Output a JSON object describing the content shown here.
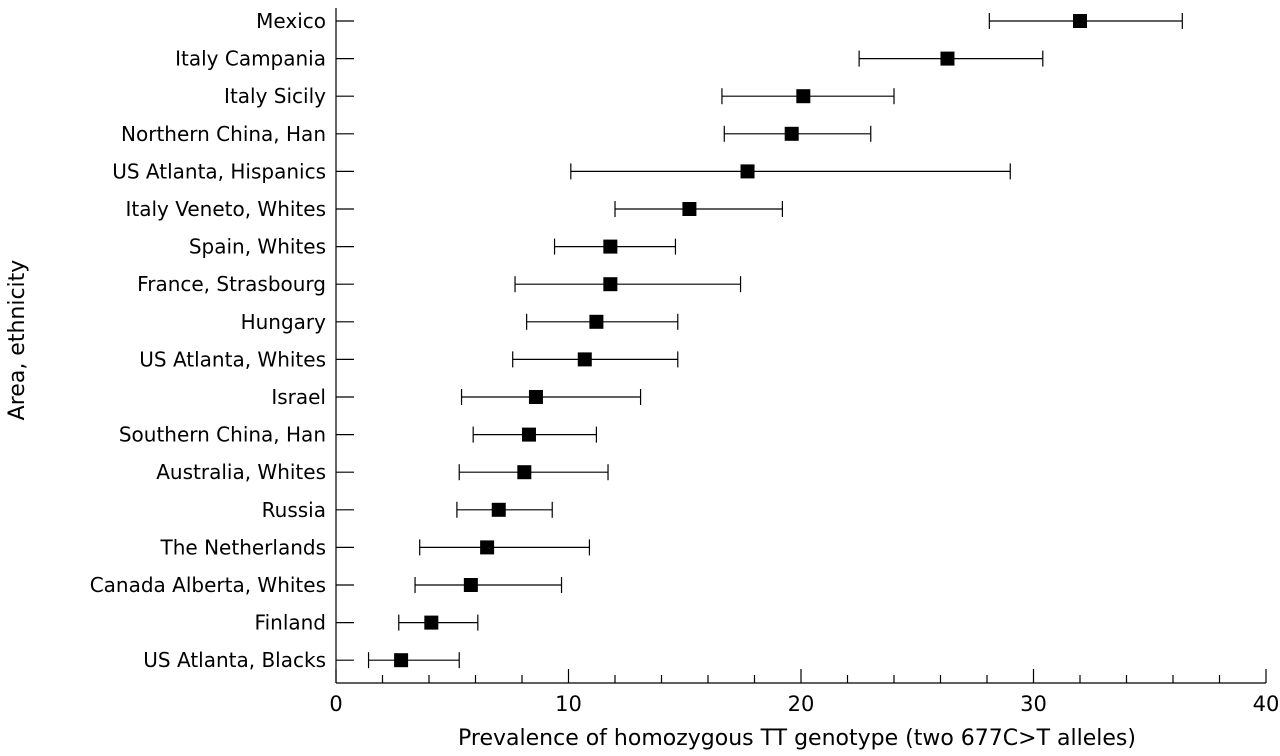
{
  "chart_data": {
    "type": "forest",
    "xlabel": "Prevalence of homozygous TT genotype (two 677C>T alleles)",
    "ylabel": "Area, ethnicity",
    "xlim": [
      0,
      40
    ],
    "xticks_labeled": [
      0,
      10,
      20,
      30,
      40
    ],
    "xticks_minor_step": 2,
    "grid": false,
    "marker": "square",
    "marker_color": "#000000",
    "rows": [
      {
        "label": "Mexico",
        "estimate": 32.0,
        "lower": 28.1,
        "upper": 36.4
      },
      {
        "label": "Italy Campania",
        "estimate": 26.3,
        "lower": 22.5,
        "upper": 30.4
      },
      {
        "label": "Italy Sicily",
        "estimate": 20.1,
        "lower": 16.6,
        "upper": 24.0
      },
      {
        "label": "Northern China, Han",
        "estimate": 19.6,
        "lower": 16.7,
        "upper": 23.0
      },
      {
        "label": "US Atlanta, Hispanics",
        "estimate": 17.7,
        "lower": 10.1,
        "upper": 29.0
      },
      {
        "label": "Italy Veneto, Whites",
        "estimate": 15.2,
        "lower": 12.0,
        "upper": 19.2
      },
      {
        "label": "Spain, Whites",
        "estimate": 11.8,
        "lower": 9.4,
        "upper": 14.6
      },
      {
        "label": "France, Strasbourg",
        "estimate": 11.8,
        "lower": 7.7,
        "upper": 17.4
      },
      {
        "label": "Hungary",
        "estimate": 11.2,
        "lower": 8.2,
        "upper": 14.7
      },
      {
        "label": "US Atlanta, Whites",
        "estimate": 10.7,
        "lower": 7.6,
        "upper": 14.7
      },
      {
        "label": "Israel",
        "estimate": 8.6,
        "lower": 5.4,
        "upper": 13.1
      },
      {
        "label": "Southern China, Han",
        "estimate": 8.3,
        "lower": 5.9,
        "upper": 11.2
      },
      {
        "label": "Australia, Whites",
        "estimate": 8.1,
        "lower": 5.3,
        "upper": 11.7
      },
      {
        "label": "Russia",
        "estimate": 7.0,
        "lower": 5.2,
        "upper": 9.3
      },
      {
        "label": "The Netherlands",
        "estimate": 6.5,
        "lower": 3.6,
        "upper": 10.9
      },
      {
        "label": "Canada Alberta, Whites",
        "estimate": 5.8,
        "lower": 3.4,
        "upper": 9.7
      },
      {
        "label": "Finland",
        "estimate": 4.1,
        "lower": 2.7,
        "upper": 6.1
      },
      {
        "label": "US Atlanta, Blacks",
        "estimate": 2.8,
        "lower": 1.4,
        "upper": 5.3
      }
    ]
  }
}
